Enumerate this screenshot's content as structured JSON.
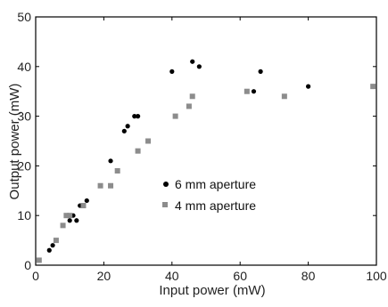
{
  "chart_data": {
    "type": "scatter",
    "xlabel": "Input power (mW)",
    "ylabel": "Output power (mW)",
    "xlim": [
      0,
      100
    ],
    "ylim": [
      0,
      50
    ],
    "x_ticks": [
      "0",
      "20",
      "40",
      "60",
      "80",
      "100"
    ],
    "y_ticks": [
      "0",
      "10",
      "20",
      "30",
      "40",
      "50"
    ],
    "grid": false,
    "legend_position": "center",
    "series": [
      {
        "name": "6 mm aperture",
        "marker": "circle",
        "color": "#000000",
        "x": [
          4,
          5,
          6,
          10,
          11,
          12,
          13,
          15,
          22,
          26,
          27,
          29,
          30,
          40,
          46,
          48,
          64,
          66,
          80
        ],
        "y": [
          3,
          4,
          5,
          9,
          10,
          9,
          12,
          13,
          21,
          27,
          28,
          30,
          30,
          39,
          41,
          40,
          35,
          39,
          36
        ]
      },
      {
        "name": "4 mm aperture",
        "marker": "square",
        "color": "#8c8c8c",
        "x": [
          1,
          6,
          8,
          9,
          10,
          14,
          19,
          22,
          24,
          30,
          33,
          41,
          45,
          46,
          62,
          73,
          99
        ],
        "y": [
          1,
          5,
          8,
          10,
          10,
          12,
          16,
          16,
          19,
          23,
          25,
          30,
          32,
          34,
          35,
          34,
          36
        ]
      }
    ]
  }
}
